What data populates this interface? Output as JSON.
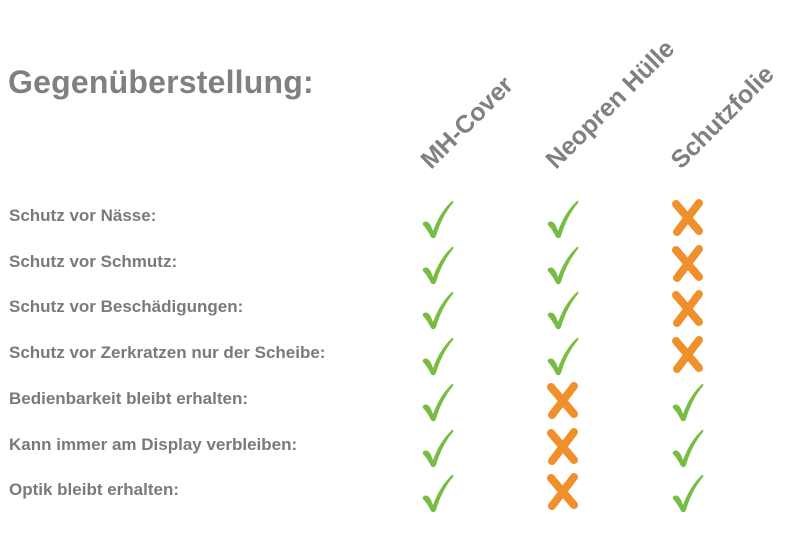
{
  "title": "Gegenüberstellung:",
  "columns": [
    "MH-Cover",
    "Neopren Hülle",
    "Schutzfolie"
  ],
  "colors": {
    "check": "#78bd43",
    "cross": "#f0902c",
    "text": "#7f7f7f"
  },
  "rows": [
    {
      "label": "Schutz vor Nässe:",
      "values": [
        true,
        true,
        false
      ]
    },
    {
      "label": "Schutz vor Schmutz:",
      "values": [
        true,
        true,
        false
      ]
    },
    {
      "label": "Schutz vor Beschädigungen:",
      "values": [
        true,
        true,
        false
      ]
    },
    {
      "label": "Schutz vor Zerkratzen nur der Scheibe:",
      "values": [
        true,
        true,
        false
      ]
    },
    {
      "label": "Bedienbarkeit bleibt erhalten:",
      "values": [
        true,
        false,
        true
      ]
    },
    {
      "label": "Kann immer am Display verbleiben:",
      "values": [
        true,
        false,
        true
      ]
    },
    {
      "label": "Optik bleibt erhalten:",
      "values": [
        true,
        false,
        true
      ]
    }
  ]
}
